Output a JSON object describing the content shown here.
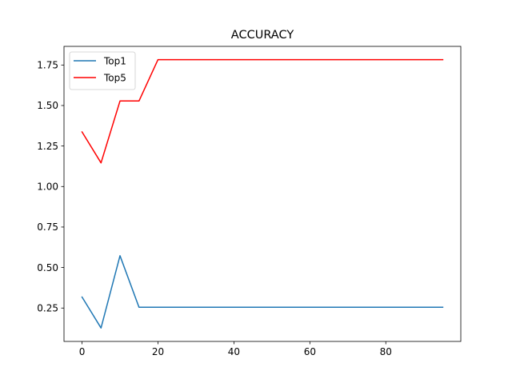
{
  "chart_data": {
    "type": "line",
    "title": "ACCURACY",
    "xlabel": "",
    "ylabel": "",
    "xlim": [
      -4.75,
      99.75
    ],
    "ylim": [
      0.044,
      1.865
    ],
    "x_ticks": [
      0,
      20,
      40,
      60,
      80
    ],
    "y_ticks": [
      0.25,
      0.5,
      0.75,
      1.0,
      1.25,
      1.5,
      1.75
    ],
    "y_tick_labels": [
      "0.25",
      "0.50",
      "0.75",
      "1.00",
      "1.25",
      "1.50",
      "1.75"
    ],
    "x_tick_labels": [
      "0",
      "20",
      "40",
      "60",
      "80"
    ],
    "grid": false,
    "legend_position": "top-left",
    "x": [
      0,
      5,
      10,
      15,
      20,
      25,
      30,
      35,
      40,
      45,
      50,
      55,
      60,
      65,
      70,
      75,
      80,
      85,
      90,
      95
    ],
    "series": [
      {
        "name": "Top1",
        "color": "#1f77b4",
        "values": [
          0.318,
          0.127,
          0.573,
          0.255,
          0.255,
          0.255,
          0.255,
          0.255,
          0.255,
          0.255,
          0.255,
          0.255,
          0.255,
          0.255,
          0.255,
          0.255,
          0.255,
          0.255,
          0.255,
          0.255
        ]
      },
      {
        "name": "Top5",
        "color": "#ff0000",
        "values": [
          1.337,
          1.146,
          1.528,
          1.528,
          1.783,
          1.783,
          1.783,
          1.783,
          1.783,
          1.783,
          1.783,
          1.783,
          1.783,
          1.783,
          1.783,
          1.783,
          1.783,
          1.783,
          1.783,
          1.783
        ]
      }
    ]
  }
}
